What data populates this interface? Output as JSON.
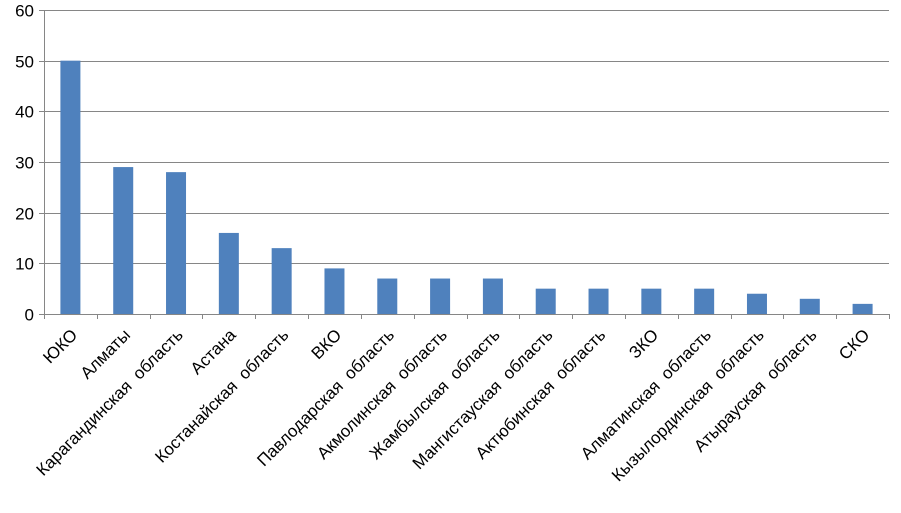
{
  "chart_data": {
    "type": "bar",
    "title": "",
    "xlabel": "",
    "ylabel": "",
    "ylim": [
      0,
      60
    ],
    "yticks": [
      0,
      10,
      20,
      30,
      40,
      50,
      60
    ],
    "grid": true,
    "legend": "none",
    "bar_color": "#4F81BD",
    "categories": [
      "ЮКО",
      "Алматы",
      "Карагандинская  область",
      "Астана",
      "Костанайская  область",
      "ВКО",
      "Павлодарская  область",
      "Акмолинская  область",
      "Жамбылская  область",
      "Мангистауская  область",
      "Актюбинская  область",
      "ЗКО",
      "Алматинская  область",
      "Кызылординская  область",
      "Атырауская  область",
      "СКО"
    ],
    "values": [
      50,
      29,
      28,
      16,
      13,
      9,
      7,
      7,
      7,
      5,
      5,
      5,
      5,
      4,
      3,
      2
    ]
  }
}
